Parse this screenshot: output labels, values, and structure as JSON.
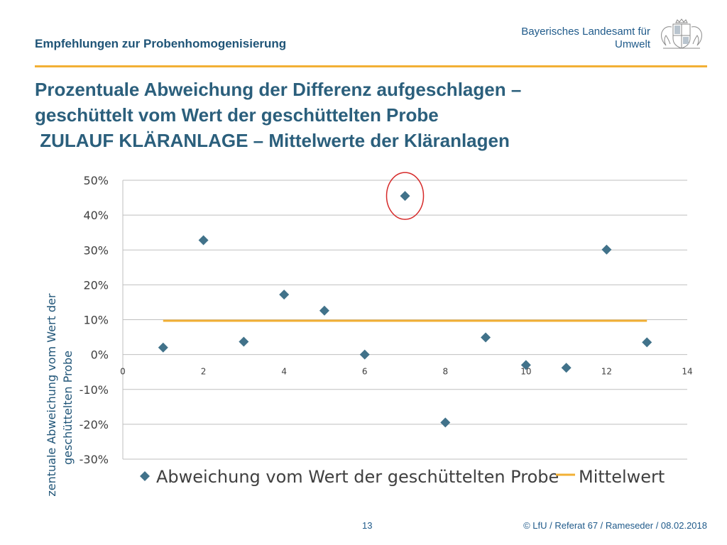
{
  "header": {
    "subtitle": "Empfehlungen zur Probenhomogenisierung",
    "org_line1": "Bayerisches Landesamt für",
    "org_line2": "Umwelt",
    "crest_icon": "bavarian-coat-of-arms"
  },
  "title": {
    "line1": "Prozentuale Abweichung der Differenz aufgeschlagen –",
    "line2": "geschüttelt vom Wert der geschüttelten Probe",
    "line3": " ZULAUF KLÄRANLAGE – Mittelwerte der Kläranlagen"
  },
  "chart_data": {
    "type": "scatter",
    "ylabel_line1": "Prozentuale  Abweichung  vom Wert der",
    "ylabel_line2": "geschüttelten Probe",
    "xlabel": "",
    "xlim": [
      0,
      14
    ],
    "ylim": [
      -30,
      50
    ],
    "x_ticks": [
      "0",
      "2",
      "4",
      "6",
      "8",
      "10",
      "12",
      "14"
    ],
    "y_ticks": [
      "50%",
      "40%",
      "30%",
      "20%",
      "10%",
      "0%",
      "-10%",
      "-20%",
      "-30%"
    ],
    "grid": true,
    "legend_position": "bottom",
    "series": [
      {
        "name": "Abweichung vom Wert der geschüttelten Probe",
        "marker": "diamond",
        "color": "#41728a",
        "points": [
          {
            "x": 1,
            "y": 2.0
          },
          {
            "x": 2,
            "y": 32.8
          },
          {
            "x": 3,
            "y": 3.7
          },
          {
            "x": 4,
            "y": 17.2
          },
          {
            "x": 5,
            "y": 12.6
          },
          {
            "x": 6,
            "y": 0.0
          },
          {
            "x": 7,
            "y": 45.5
          },
          {
            "x": 8,
            "y": -19.5
          },
          {
            "x": 9,
            "y": 4.9
          },
          {
            "x": 10,
            "y": -3.0
          },
          {
            "x": 11,
            "y": -3.8
          },
          {
            "x": 12,
            "y": 30.1
          },
          {
            "x": 13,
            "y": 3.5
          }
        ]
      },
      {
        "name": "Mittelwert",
        "marker": "line",
        "color": "#f2b035",
        "points": [
          {
            "x": 1,
            "y": 9.7
          },
          {
            "x": 13,
            "y": 9.7
          }
        ]
      }
    ],
    "annotations": [
      {
        "type": "circle",
        "x": 7,
        "y": 45.5,
        "color": "#d62a2a"
      }
    ]
  },
  "footer": {
    "page_number": "13",
    "copyright": "© LfU / Referat 67 / Rameseder / 08.02.2018"
  }
}
